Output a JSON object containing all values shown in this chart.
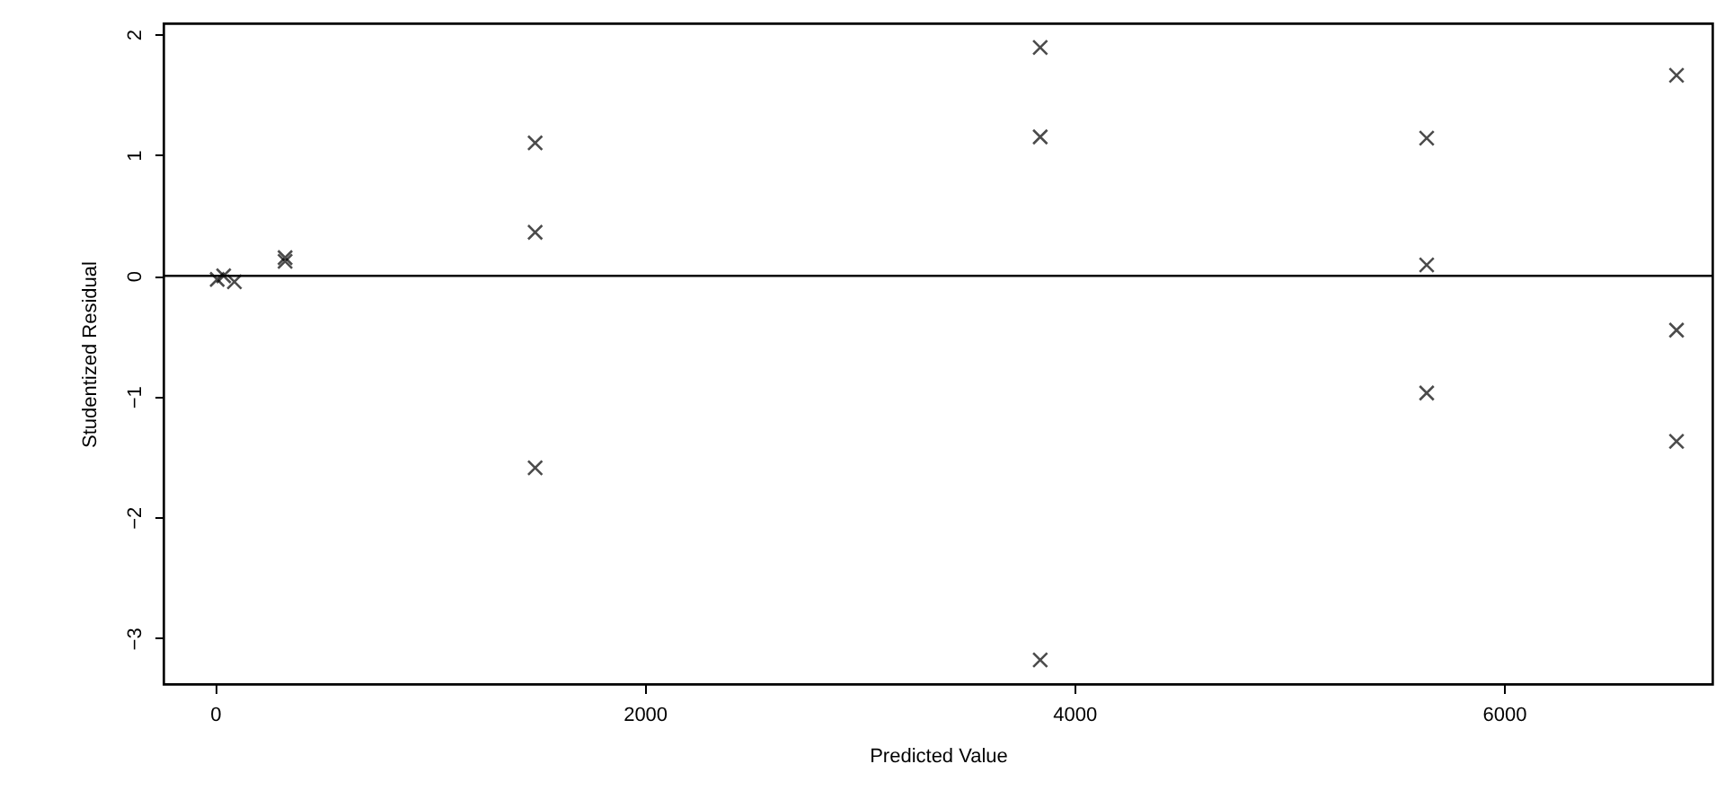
{
  "chart_data": {
    "type": "scatter",
    "xlabel": "Predicted Value",
    "ylabel": "Studentized Residual",
    "series": [
      {
        "color": "#000000",
        "x": [
          10,
          40,
          90,
          326,
          326,
          1490,
          1490,
          1490,
          3841,
          3841,
          3841,
          5640,
          5640,
          5640,
          6803,
          6803,
          6803
        ],
        "values": [
          -0.03,
          0.0,
          -0.05,
          0.12,
          0.15,
          1.1,
          0.36,
          -1.59,
          1.89,
          1.15,
          -3.18,
          1.14,
          0.09,
          -0.97,
          1.66,
          -0.45,
          -1.37
        ]
      }
    ],
    "xlim": [
      -240,
      6970
    ],
    "ylim": [
      -3.38,
      2.09
    ],
    "xticks": [
      0,
      2000,
      4000,
      6000
    ],
    "yticks": [
      -3,
      -2,
      -1,
      0,
      1,
      2
    ],
    "ref_lines": [
      {
        "axis": "y",
        "value": 0,
        "color": "#000000"
      }
    ],
    "marker": "cross",
    "grid": false
  }
}
